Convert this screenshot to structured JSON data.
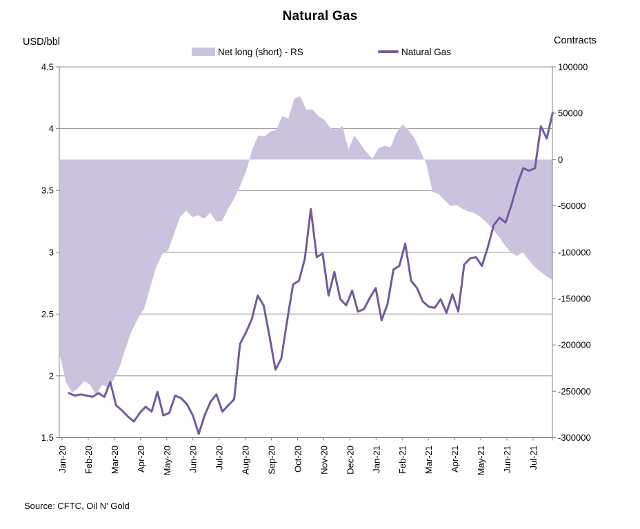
{
  "title": "Natural Gas",
  "left_axis": {
    "title": "USD/bbl",
    "tick_labels": [
      "4.5",
      "4",
      "3.5",
      "3",
      "2.5",
      "2",
      "1.5"
    ],
    "min": 1.5,
    "max": 4.5,
    "tick_step": 0.5
  },
  "right_axis": {
    "title": "Contracts",
    "tick_labels": [
      "100000",
      "50000",
      "0",
      "-50000",
      "-100000",
      "-150000",
      "-200000",
      "-250000",
      "-300000"
    ],
    "min": -300000,
    "max": 100000,
    "tick_step": 50000
  },
  "legend": {
    "area_label": "Net long (short) - RS",
    "line_label": "Natural Gas",
    "position": "top"
  },
  "source": "Source: CFTC, Oil N' Gold",
  "colors": {
    "area_fill": "#CBC2DE",
    "line": "#73599E",
    "gridline": "#8C8C8C",
    "axis": "#808080"
  },
  "chart_data": {
    "type": "area",
    "subtype": "weekly area (right axis) + line (left axis), dual y-axes",
    "grid": "horizontal gridlines at left-axis 0.5 steps",
    "legend_position": "top",
    "x_tick_labels": [
      "Jan-20",
      "Feb-20",
      "Mar-20",
      "Apr-20",
      "May-20",
      "Jun-20",
      "Jul-20",
      "Aug-20",
      "Sep-20",
      "Oct-20",
      "Nov-20",
      "Dec-20",
      "Jan-21",
      "Feb-21",
      "Mar-21",
      "Apr-21",
      "May-21",
      "Jun-21",
      "Jul-21"
    ],
    "x_unit": "weekly observations, Jan 2020 - early Aug 2021",
    "left_ylim": [
      1.5,
      4.5
    ],
    "right_ylim": [
      -300000,
      100000
    ],
    "series": [
      {
        "name": "Net long (short) - RS",
        "type": "area",
        "axis": "right",
        "unit": "contracts",
        "values": [
          -212000,
          -240000,
          -251000,
          -247000,
          -239000,
          -243000,
          -254000,
          -243000,
          -246000,
          -237000,
          -222000,
          -202000,
          -184000,
          -171000,
          -161000,
          -138000,
          -116000,
          -102000,
          -98000,
          -80000,
          -62000,
          -55000,
          -62000,
          -60000,
          -64000,
          -57000,
          -67000,
          -66000,
          -53000,
          -42000,
          -28000,
          -12000,
          11000,
          26000,
          25000,
          30000,
          32000,
          47000,
          44000,
          66000,
          68000,
          54000,
          54000,
          47000,
          43000,
          34000,
          32000,
          36000,
          11000,
          26000,
          17000,
          8000,
          1000,
          12000,
          15000,
          13000,
          29000,
          38000,
          32000,
          23000,
          9000,
          -5000,
          -35000,
          -37000,
          -44000,
          -50000,
          -49000,
          -53000,
          -56000,
          -58000,
          -62000,
          -68000,
          -75000,
          -83000,
          -92000,
          -100000,
          -104000,
          -100000,
          -108000,
          -116000,
          -121000,
          -126000,
          -130000
        ]
      },
      {
        "name": "Natural Gas",
        "type": "line",
        "axis": "left",
        "unit": "USD/bbl",
        "values": [
          1.86,
          1.84,
          1.85,
          1.84,
          1.83,
          1.86,
          1.83,
          1.95,
          1.76,
          1.72,
          1.67,
          1.63,
          1.7,
          1.75,
          1.71,
          1.87,
          1.68,
          1.7,
          1.84,
          1.82,
          1.77,
          1.68,
          1.53,
          1.68,
          1.79,
          1.85,
          1.71,
          1.76,
          1.81,
          2.26,
          2.35,
          2.46,
          2.65,
          2.57,
          2.32,
          2.05,
          2.14,
          2.45,
          2.74,
          2.77,
          2.95,
          3.35,
          2.96,
          2.99,
          2.65,
          2.84,
          2.62,
          2.57,
          2.69,
          2.52,
          2.54,
          2.63,
          2.71,
          2.45,
          2.58,
          2.86,
          2.89,
          3.07,
          2.77,
          2.71,
          2.6,
          2.56,
          2.55,
          2.62,
          2.51,
          2.66,
          2.52,
          2.9,
          2.95,
          2.96,
          2.89,
          3.04,
          3.22,
          3.28,
          3.24,
          3.38,
          3.55,
          3.68,
          3.66,
          3.68,
          4.02,
          3.92,
          4.13
        ]
      }
    ]
  }
}
